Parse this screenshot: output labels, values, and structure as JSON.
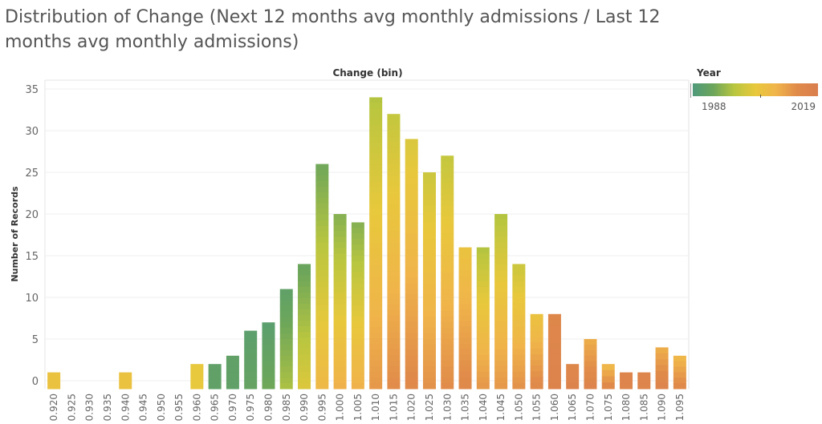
{
  "title": "Distribution of Change (Next 12 months avg monthly admissions / Last 12 months avg monthly admissions)",
  "legend": {
    "title": "Year",
    "min_label": "1988",
    "max_label": "2019",
    "colors": [
      "#4f9a7c",
      "#6da65a",
      "#b9c63f",
      "#e8c83c",
      "#f0b44a",
      "#e08a4a",
      "#d97e4e"
    ]
  },
  "chart_data": {
    "type": "bar",
    "title": "Change (bin)",
    "xlabel": "",
    "ylabel": "Number of Records",
    "ylim": [
      0,
      35
    ],
    "yticks": [
      0,
      5,
      10,
      15,
      20,
      25,
      30,
      35
    ],
    "grid": true,
    "categories": [
      "0.920",
      "0.925",
      "0.930",
      "0.935",
      "0.940",
      "0.945",
      "0.950",
      "0.955",
      "0.960",
      "0.965",
      "0.970",
      "0.975",
      "0.980",
      "0.985",
      "0.990",
      "0.995",
      "1.000",
      "1.005",
      "1.010",
      "1.015",
      "1.020",
      "1.025",
      "1.030",
      "1.035",
      "1.040",
      "1.045",
      "1.050",
      "1.055",
      "1.060",
      "1.065",
      "1.070",
      "1.075",
      "1.080",
      "1.085",
      "1.090",
      "1.095"
    ],
    "values": [
      1,
      0,
      0,
      0,
      1,
      0,
      0,
      0,
      2,
      2,
      3,
      6,
      7,
      11,
      14,
      26,
      20,
      19,
      34,
      32,
      29,
      25,
      27,
      16,
      16,
      20,
      14,
      8,
      8,
      2,
      5,
      2,
      1,
      1,
      4,
      3
    ],
    "color_centers": [
      0.55,
      0,
      0,
      0,
      0.55,
      0,
      0,
      0,
      0.5,
      0.1,
      0.1,
      0.1,
      0.12,
      0.2,
      0.3,
      0.4,
      0.45,
      0.45,
      0.55,
      0.6,
      0.65,
      0.6,
      0.6,
      0.7,
      0.55,
      0.55,
      0.6,
      0.7,
      0.9,
      0.9,
      0.8,
      0.75,
      0.9,
      0.9,
      0.8,
      0.75
    ],
    "color_spreads": [
      0,
      0,
      0,
      0,
      0,
      0,
      0,
      0,
      0,
      0,
      0,
      0.05,
      0.1,
      0.2,
      0.3,
      0.45,
      0.45,
      0.45,
      0.45,
      0.45,
      0.4,
      0.4,
      0.45,
      0.3,
      0.45,
      0.45,
      0.4,
      0.3,
      0.05,
      0.05,
      0.2,
      0.2,
      0,
      0,
      0.2,
      0.2
    ]
  }
}
